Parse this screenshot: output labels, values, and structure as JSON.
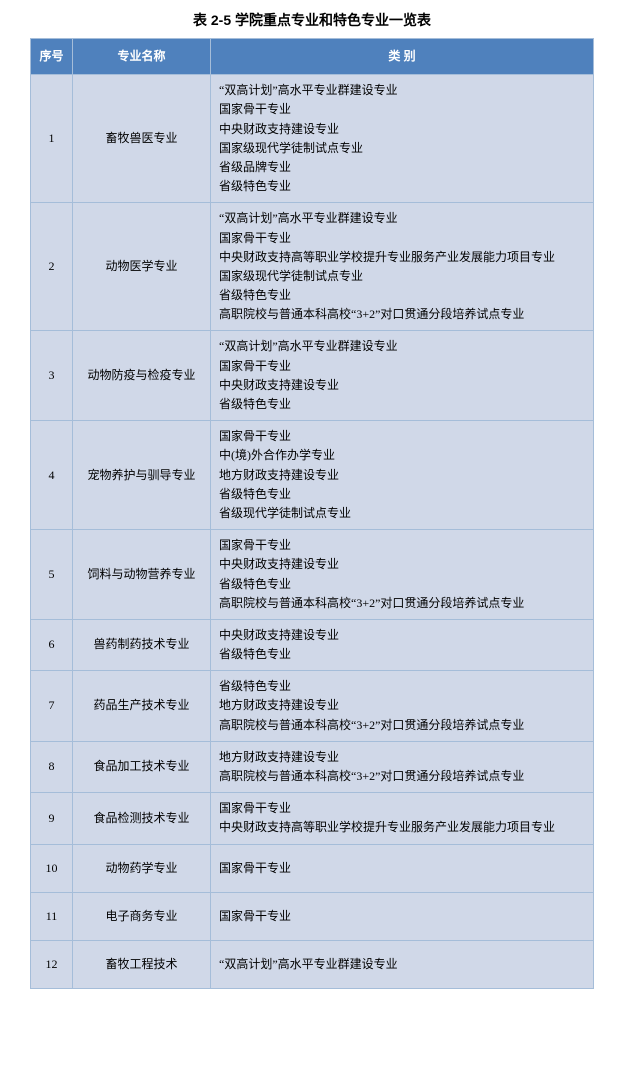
{
  "title": "表 2-5  学院重点专业和特色专业一览表",
  "columns": [
    "序号",
    "专业名称",
    "类 别"
  ],
  "rows": [
    {
      "index": "1",
      "major": "畜牧兽医专业",
      "categories": [
        "“双高计划”高水平专业群建设专业",
        "国家骨干专业",
        "中央财政支持建设专业",
        "国家级现代学徒制试点专业",
        "省级品牌专业",
        "省级特色专业"
      ]
    },
    {
      "index": "2",
      "major": "动物医学专业",
      "categories": [
        "“双高计划”高水平专业群建设专业",
        "国家骨干专业",
        "中央财政支持高等职业学校提升专业服务产业发展能力项目专业",
        "国家级现代学徒制试点专业",
        "省级特色专业",
        "高职院校与普通本科高校“3+2”对口贯通分段培养试点专业"
      ]
    },
    {
      "index": "3",
      "major": "动物防疫与检疫专业",
      "categories": [
        "“双高计划”高水平专业群建设专业",
        "国家骨干专业",
        "中央财政支持建设专业",
        "省级特色专业"
      ]
    },
    {
      "index": "4",
      "major": "宠物养护与驯导专业",
      "categories": [
        "国家骨干专业",
        "中(境)外合作办学专业",
        "地方财政支持建设专业",
        "省级特色专业",
        "省级现代学徒制试点专业"
      ]
    },
    {
      "index": "5",
      "major": "饲料与动物营养专业",
      "categories": [
        "国家骨干专业",
        "中央财政支持建设专业",
        "省级特色专业",
        "高职院校与普通本科高校“3+2”对口贯通分段培养试点专业"
      ]
    },
    {
      "index": "6",
      "major": "兽药制药技术专业",
      "categories": [
        "中央财政支持建设专业",
        "省级特色专业"
      ]
    },
    {
      "index": "7",
      "major": "药品生产技术专业",
      "categories": [
        "省级特色专业",
        "地方财政支持建设专业",
        "高职院校与普通本科高校“3+2”对口贯通分段培养试点专业"
      ]
    },
    {
      "index": "8",
      "major": "食品加工技术专业",
      "categories": [
        "地方财政支持建设专业",
        "高职院校与普通本科高校“3+2”对口贯通分段培养试点专业"
      ]
    },
    {
      "index": "9",
      "major": "食品检测技术专业",
      "categories": [
        "国家骨干专业",
        "中央财政支持高等职业学校提升专业服务产业发展能力项目专业"
      ]
    },
    {
      "index": "10",
      "major": "动物药学专业",
      "categories": [
        "国家骨干专业"
      ]
    },
    {
      "index": "11",
      "major": "电子商务专业",
      "categories": [
        "国家骨干专业"
      ]
    },
    {
      "index": "12",
      "major": "畜牧工程技术",
      "categories": [
        "“双高计划”高水平专业群建设专业"
      ]
    }
  ],
  "colors": {
    "header_bg": "#4f81bd",
    "header_text": "#ffffff",
    "cell_bg": "#d0d8e8",
    "cell_text": "#000000",
    "border": "#a5bdd9"
  }
}
